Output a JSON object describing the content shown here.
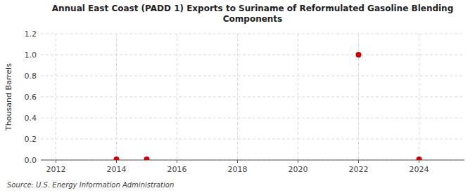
{
  "chart_data": {
    "type": "scatter",
    "title": "Annual East Coast (PADD 1) Exports to Suriname of Reformulated Gasoline Blending\nComponents",
    "y_label": "Thousand Barrels",
    "source": "Source: U.S. Energy Information Administration",
    "x": [
      2014,
      2015,
      2022,
      2024
    ],
    "values": [
      0.007,
      0.007,
      1.0,
      0.007
    ],
    "color": "#cc0000",
    "xlim": [
      2011.5,
      2025.5
    ],
    "xticks": [
      2012,
      2014,
      2016,
      2018,
      2020,
      2022,
      2024
    ],
    "ylim": [
      0.0,
      1.2
    ],
    "yticks": [
      {
        "value": 0.0,
        "label": "0.0"
      },
      0.2,
      0.4,
      0.6,
      0.8,
      {
        "value": 1.0,
        "label": "1.0"
      },
      1.2
    ],
    "grid": true
  }
}
